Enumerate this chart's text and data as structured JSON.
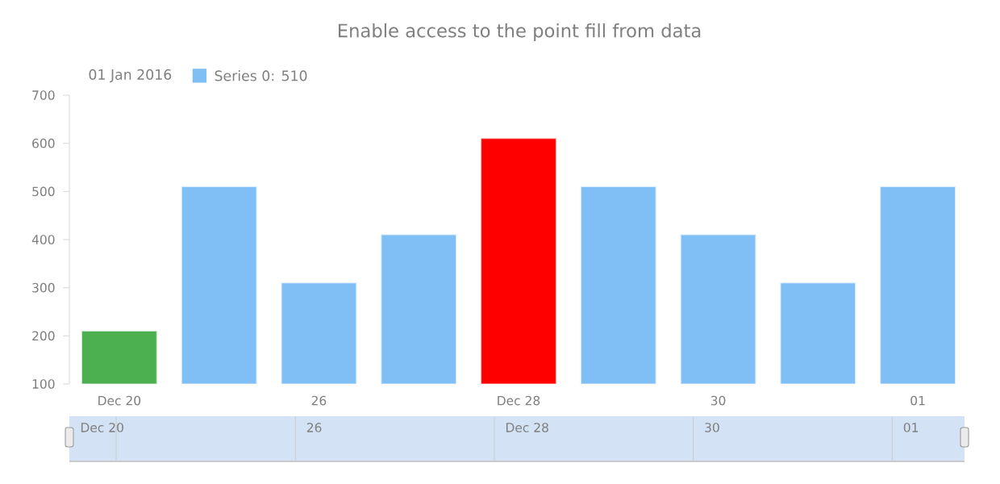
{
  "chart_data": {
    "type": "bar",
    "title": "Enable access to the point fill from data",
    "categories": [
      "Dec 20",
      null,
      "26",
      null,
      "Dec 28",
      null,
      "30",
      null,
      "01"
    ],
    "series": [
      {
        "name": "Series 0: 510",
        "color": "#80bff5",
        "colors": [
          "#4caf50",
          "#80bff5",
          "#80bff5",
          "#80bff5",
          "#ff0000",
          "#80bff5",
          "#80bff5",
          "#80bff5",
          "#80bff5"
        ],
        "values": [
          210,
          510,
          310,
          410,
          610,
          510,
          410,
          310,
          510
        ]
      }
    ],
    "legend_title": "01 Jan 2016",
    "legend": "top left",
    "ylim": [
      100,
      700
    ],
    "yticks": [
      100,
      200,
      300,
      400,
      500,
      600,
      700
    ],
    "annotations": [
      "Dec 20",
      "26",
      "Dec 28",
      "30",
      "01"
    ]
  }
}
